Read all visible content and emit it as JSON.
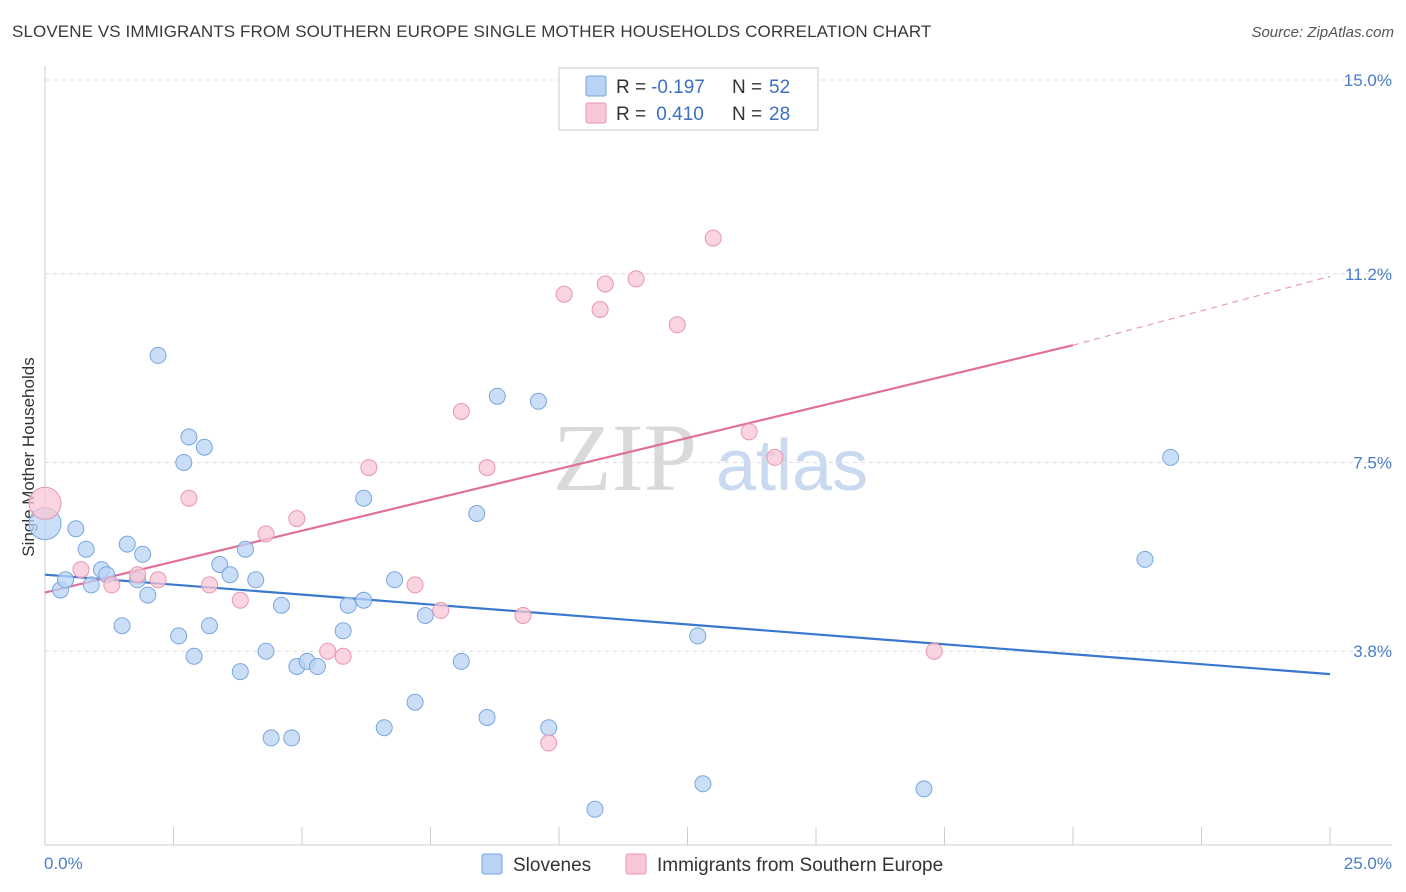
{
  "title": "SLOVENE VS IMMIGRANTS FROM SOUTHERN EUROPE SINGLE MOTHER HOUSEHOLDS CORRELATION CHART",
  "source": "Source: ZipAtlas.com",
  "watermark": {
    "zip": "ZIP",
    "atlas": "atlas"
  },
  "colors": {
    "blue_fill": "#b8d3f5",
    "blue_stroke": "#7aa6de",
    "blue_line": "#3a78d0",
    "pink_fill": "#f8c6d6",
    "pink_stroke": "#e896b0",
    "pink_line": "#e07099",
    "grid": "#dddddd",
    "label": "#4a7cc7"
  },
  "legend": {
    "rows": [
      {
        "r_label": "R = ",
        "r_value": "-0.197",
        "n_label": "N = ",
        "n_value": "52"
      },
      {
        "r_label": "R = ",
        "r_value": " 0.410",
        "n_label": "N = ",
        "n_value": "28"
      }
    ]
  },
  "chart_data": {
    "type": "scatter",
    "title": "SLOVENE VS IMMIGRANTS FROM SOUTHERN EUROPE SINGLE MOTHER HOUSEHOLDS CORRELATION CHART",
    "xlabel": "",
    "ylabel": "Single Mother Households",
    "xlim": [
      0,
      25
    ],
    "ylim": [
      0,
      15
    ],
    "x_tick_labels": [
      "0.0%",
      "25.0%"
    ],
    "y_ticks": [
      3.8,
      7.5,
      11.2,
      15.0
    ],
    "y_tick_labels": [
      "3.8%",
      "7.5%",
      "11.2%",
      "15.0%"
    ],
    "series": [
      {
        "name": "Slovenes",
        "points": [
          [
            0.0,
            6.3
          ],
          [
            0.3,
            5.0
          ],
          [
            0.4,
            5.2
          ],
          [
            0.6,
            6.2
          ],
          [
            0.8,
            5.8
          ],
          [
            0.9,
            5.1
          ],
          [
            1.1,
            5.4
          ],
          [
            1.2,
            5.3
          ],
          [
            1.5,
            4.3
          ],
          [
            1.6,
            5.9
          ],
          [
            1.8,
            5.2
          ],
          [
            1.9,
            5.7
          ],
          [
            2.0,
            4.9
          ],
          [
            2.2,
            9.6
          ],
          [
            2.6,
            4.1
          ],
          [
            2.7,
            7.5
          ],
          [
            2.8,
            8.0
          ],
          [
            2.9,
            3.7
          ],
          [
            3.1,
            7.8
          ],
          [
            3.2,
            4.3
          ],
          [
            3.4,
            5.5
          ],
          [
            3.6,
            5.3
          ],
          [
            3.8,
            3.4
          ],
          [
            3.9,
            5.8
          ],
          [
            4.1,
            5.2
          ],
          [
            4.3,
            3.8
          ],
          [
            4.4,
            2.1
          ],
          [
            4.6,
            4.7
          ],
          [
            4.8,
            2.1
          ],
          [
            4.9,
            3.5
          ],
          [
            5.1,
            3.6
          ],
          [
            5.3,
            3.5
          ],
          [
            5.8,
            4.2
          ],
          [
            5.9,
            4.7
          ],
          [
            6.2,
            4.8
          ],
          [
            6.2,
            6.8
          ],
          [
            6.6,
            2.3
          ],
          [
            6.8,
            5.2
          ],
          [
            7.2,
            2.8
          ],
          [
            7.4,
            4.5
          ],
          [
            8.1,
            3.6
          ],
          [
            8.4,
            6.5
          ],
          [
            8.6,
            2.5
          ],
          [
            8.8,
            8.8
          ],
          [
            9.6,
            8.7
          ],
          [
            9.8,
            2.3
          ],
          [
            10.7,
            0.7
          ],
          [
            12.7,
            4.1
          ],
          [
            12.8,
            1.2
          ],
          [
            17.1,
            1.1
          ],
          [
            21.4,
            5.6
          ],
          [
            21.9,
            7.6
          ]
        ],
        "trend": {
          "x": [
            0,
            25
          ],
          "y": [
            5.3,
            3.35
          ]
        }
      },
      {
        "name": "Immigrants from Southern Europe",
        "points": [
          [
            0.0,
            6.7
          ],
          [
            0.7,
            5.4
          ],
          [
            1.3,
            5.1
          ],
          [
            1.8,
            5.3
          ],
          [
            2.2,
            5.2
          ],
          [
            2.8,
            6.8
          ],
          [
            3.2,
            5.1
          ],
          [
            3.8,
            4.8
          ],
          [
            4.3,
            6.1
          ],
          [
            4.9,
            6.4
          ],
          [
            5.5,
            3.8
          ],
          [
            5.8,
            3.7
          ],
          [
            6.3,
            7.4
          ],
          [
            7.2,
            5.1
          ],
          [
            7.7,
            4.6
          ],
          [
            8.1,
            8.5
          ],
          [
            8.6,
            7.4
          ],
          [
            9.3,
            4.5
          ],
          [
            9.8,
            2.0
          ],
          [
            10.1,
            10.8
          ],
          [
            10.8,
            10.5
          ],
          [
            10.9,
            11.0
          ],
          [
            11.5,
            11.1
          ],
          [
            12.3,
            10.2
          ],
          [
            13.0,
            11.9
          ],
          [
            13.7,
            8.1
          ],
          [
            14.2,
            7.6
          ],
          [
            17.3,
            3.8
          ]
        ],
        "trend": {
          "x": [
            0,
            20
          ],
          "y": [
            4.95,
            9.8
          ],
          "dashed_to": {
            "x": 25,
            "y": 11.15
          }
        }
      }
    ],
    "legend_position": "bottom-center"
  }
}
